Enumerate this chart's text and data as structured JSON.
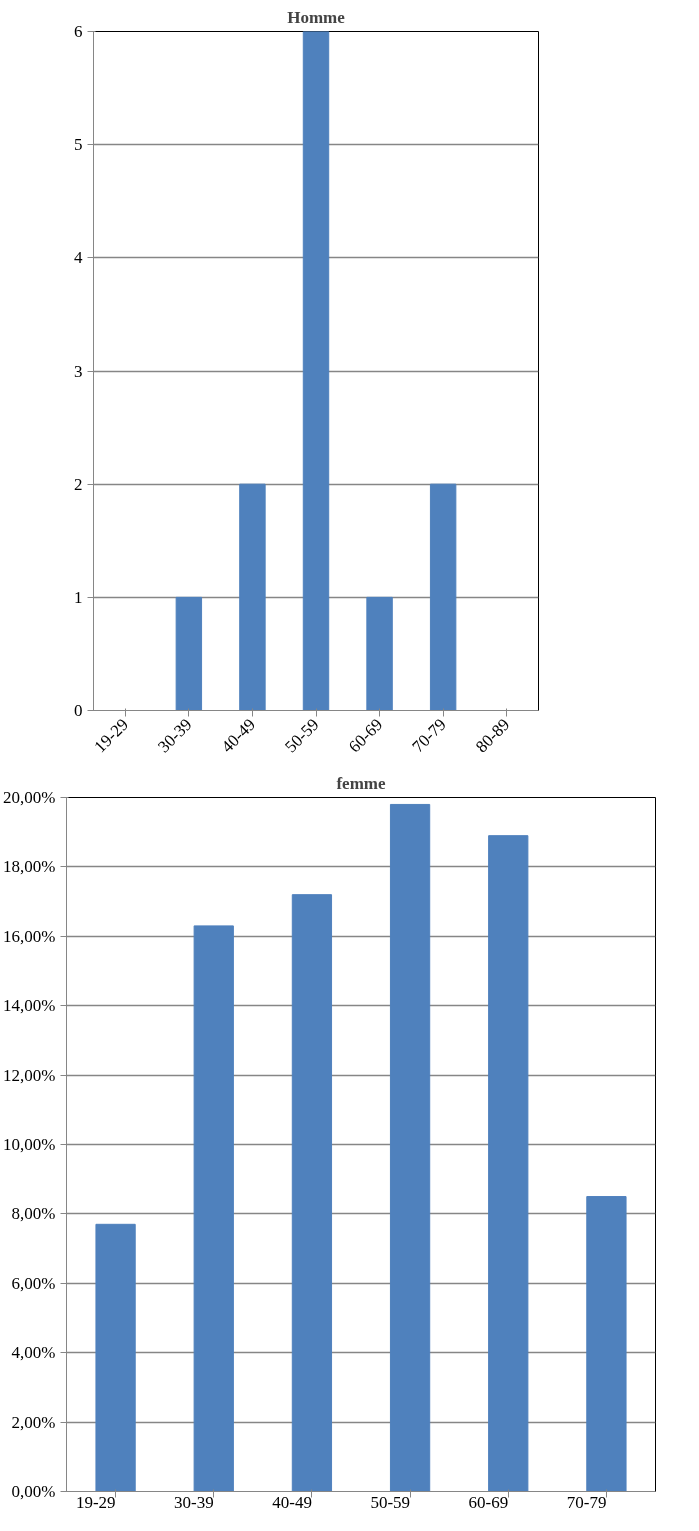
{
  "chart_data": [
    {
      "type": "bar",
      "title": "Homme",
      "categories": [
        "19-29",
        "30-39",
        "40-49",
        "50-59",
        "60-69",
        "70-79",
        "80-89"
      ],
      "values": [
        0,
        1,
        2,
        6,
        1,
        2,
        0
      ],
      "color": "#4f81bd",
      "ylim": [
        0,
        6
      ],
      "yticks": [
        0,
        1,
        2,
        3,
        4,
        5,
        6
      ],
      "grid": "y"
    },
    {
      "type": "bar",
      "title": "femme",
      "categories": [
        "19-29",
        "30-39",
        "40-49",
        "50-59",
        "60-69",
        "70-79"
      ],
      "values": [
        7.7,
        16.3,
        17.2,
        19.8,
        18.9,
        8.5
      ],
      "color": "#4f81bd",
      "ylim": [
        0,
        20
      ],
      "yticks": [
        {
          "value": 0,
          "label": "0,00%"
        },
        {
          "value": 2,
          "label": "2,00%"
        },
        {
          "value": 4,
          "label": "4,00%"
        },
        {
          "value": 6,
          "label": "6,00%"
        },
        {
          "value": 8,
          "label": "8,00%"
        },
        {
          "value": 10,
          "label": "10,00%"
        },
        {
          "value": 12,
          "label": "12,00%"
        },
        {
          "value": 14,
          "label": "14,00%"
        },
        {
          "value": 16,
          "label": "16,00%"
        },
        {
          "value": 18,
          "label": "18,00%"
        },
        {
          "value": 20,
          "label": "20,00%"
        }
      ],
      "grid": "y"
    }
  ]
}
